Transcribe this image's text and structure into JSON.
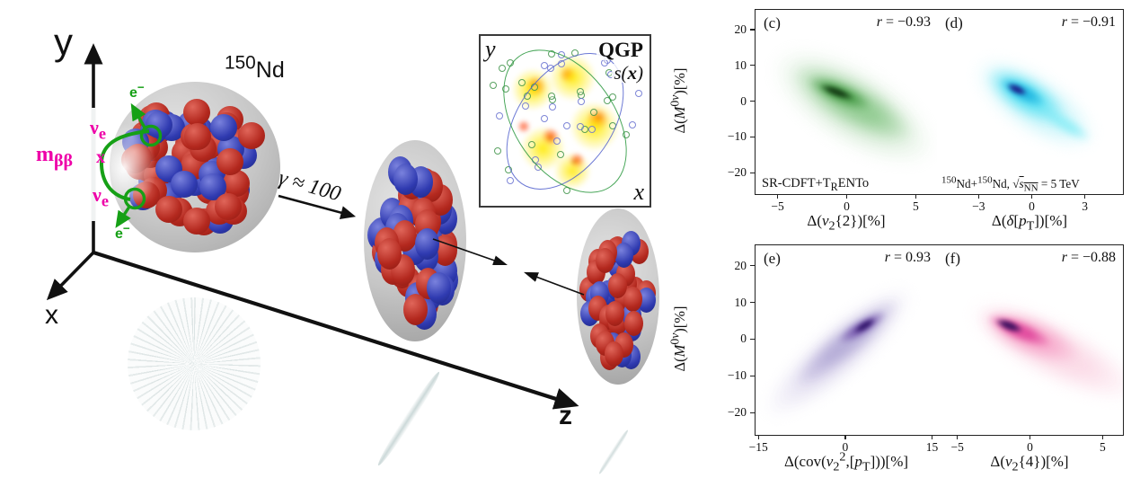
{
  "diagram": {
    "axes": {
      "x": "x",
      "y": "y",
      "z": "z"
    },
    "nucleus_label_html": "<sup>150</sup>Nd",
    "boost_label": "γ ≈ 100",
    "electron_html": "e<sup>−</sup>",
    "neutrino_html": "ν<sub>e</sub>",
    "mbb_html": "m<sub>ββ</sub>",
    "mass_cross": "x",
    "inset": {
      "title": "QGP",
      "entropy_html": "s(<b>x</b>)",
      "xaxis": "x",
      "yaxis": "y"
    },
    "colors": {
      "nucleon_red": "#b3281e",
      "nucleon_blue": "#2f3ab0",
      "decay_green": "#16a016",
      "magenta": "#ee00a8",
      "envelope_gray": "#c6c6c6"
    }
  },
  "chart_data": {
    "type": "density-correlation-grid",
    "grid": "2x2",
    "ylabel_html": "Δ(<i>M</i><sup>0<i>ν</i></sup>)[%]",
    "ylim": [
      -26,
      25.5
    ],
    "yticks": [
      20,
      10,
      0,
      -10,
      -20
    ],
    "panels": [
      {
        "tag": "(c)",
        "r_label_html": "<i>r</i> = −0.93",
        "r_value": -0.93,
        "xlabel_html": "Δ(<i>v</i><sub>2</sub>{2})[%]",
        "xlim": [
          -6.6,
          6.6
        ],
        "xticks": [
          -5,
          0,
          5
        ],
        "note_html": "SR-CDFT+T<sub>R</sub>ENTo",
        "show_yticks": true,
        "cloud": {
          "trend": "negative",
          "colormap": "greens",
          "blobs": [
            {
              "x1": -4.8,
              "y1": 11,
              "x2": 5.8,
              "y2": -14,
              "th": 62,
              "color": "#cfe8cf",
              "blur": 8,
              "op": 0.95
            },
            {
              "x1": -3.6,
              "y1": 8,
              "x2": 4.4,
              "y2": -9.5,
              "th": 36,
              "color": "#8cc98c",
              "blur": 6,
              "op": 0.9
            },
            {
              "x1": -2.6,
              "y1": 5.5,
              "x2": 1.6,
              "y2": -1.5,
              "th": 17,
              "color": "#3d943d",
              "blur": 4,
              "op": 0.9
            },
            {
              "x1": -1.9,
              "y1": 4.2,
              "x2": 0.4,
              "y2": 0.8,
              "th": 8,
              "color": "#143a14",
              "blur": 2,
              "op": 0.95
            }
          ]
        }
      },
      {
        "tag": "(d)",
        "r_label_html": "<i>r</i> = −0.91",
        "r_value": -0.91,
        "xlabel_html": "Δ(<i>δ</i>[<i>p</i><sub>T</sub>])[%]",
        "xlim": [
          -5.35,
          5.15
        ],
        "xticks": [
          -3,
          0,
          3
        ],
        "note_html": "<sup>150</sup>Nd+<sup>150</sup>Nd, √<span class=\"ov\"><i>s</i><sub>NN</sub></span> = 5 TeV",
        "show_yticks": false,
        "cloud": {
          "trend": "negative",
          "colormap": "cyan-navy",
          "blobs": [
            {
              "x1": -2.9,
              "y1": 9.5,
              "x2": 3.3,
              "y2": -11,
              "th": 48,
              "color": "#bff3f9",
              "blur": 7,
              "op": 0.95
            },
            {
              "x1": 0.6,
              "y1": -2.5,
              "x2": 3.2,
              "y2": -10.5,
              "th": 13,
              "color": "#8deef7",
              "blur": 4,
              "op": 0.9
            },
            {
              "x1": -2.3,
              "y1": 7.5,
              "x2": 1.7,
              "y2": -4.5,
              "th": 30,
              "color": "#55e0f2",
              "blur": 5,
              "op": 0.9
            },
            {
              "x1": -1.7,
              "y1": 5.8,
              "x2": 0.7,
              "y2": -0.5,
              "th": 15,
              "color": "#1fb4e0",
              "blur": 3,
              "op": 0.9
            },
            {
              "x1": -1.4,
              "y1": 4.6,
              "x2": -0.3,
              "y2": 2.0,
              "th": 8,
              "color": "#1d1d8a",
              "blur": 2,
              "op": 0.95
            }
          ]
        }
      },
      {
        "tag": "(e)",
        "r_label_html": "<i>r</i> = 0.93",
        "r_value": 0.93,
        "xlabel_html": "Δ(cov(<i>v</i><sub>2</sub><sup>2</sup>,[<i>p</i><sub>T</sub>]))[%]",
        "xlim": [
          -15.5,
          16
        ],
        "xticks": [
          -15,
          0,
          15
        ],
        "note_html": "",
        "show_yticks": true,
        "cloud": {
          "trend": "positive",
          "colormap": "purples",
          "blobs": [
            {
              "x1": -12.8,
              "y1": -19.5,
              "x2": 10.5,
              "y2": 12.5,
              "th": 42,
              "color": "#ded9ee",
              "blur": 7,
              "op": 0.95
            },
            {
              "x1": -8,
              "y1": -11.5,
              "x2": 8.6,
              "y2": 10,
              "th": 25,
              "color": "#b3aad6",
              "blur": 5,
              "op": 0.9
            },
            {
              "x1": -1,
              "y1": -0.5,
              "x2": 6.6,
              "y2": 7,
              "th": 13,
              "color": "#7657ae",
              "blur": 3,
              "op": 0.9
            },
            {
              "x1": 1.6,
              "y1": 1.8,
              "x2": 5.2,
              "y2": 5.4,
              "th": 7,
              "color": "#2f1268",
              "blur": 2,
              "op": 0.95
            }
          ]
        }
      },
      {
        "tag": "(f)",
        "r_label_html": "<i>r</i> = −0.88",
        "r_value": -0.88,
        "xlabel_html": "Δ(<i>v</i><sub>2</sub>{4})[%]",
        "xlim": [
          -6.4,
          6.4
        ],
        "xticks": [
          -5,
          0,
          5
        ],
        "note_html": "",
        "show_yticks": false,
        "cloud": {
          "trend": "negative",
          "colormap": "pink-purple",
          "blobs": [
            {
              "x1": -3.7,
              "y1": 7.8,
              "x2": 7.0,
              "y2": -14,
              "th": 48,
              "color": "#fbd9e6",
              "blur": 7,
              "op": 0.95
            },
            {
              "x1": -3.1,
              "y1": 6.2,
              "x2": 3.2,
              "y2": -4.5,
              "th": 32,
              "color": "#f6a3c8",
              "blur": 5,
              "op": 0.9
            },
            {
              "x1": -2.7,
              "y1": 5.6,
              "x2": 1.3,
              "y2": -1.2,
              "th": 17,
              "color": "#e0459b",
              "blur": 3,
              "op": 0.9
            },
            {
              "x1": -2.3,
              "y1": 5.0,
              "x2": -0.5,
              "y2": 2.2,
              "th": 9,
              "color": "#3a115f",
              "blur": 2,
              "op": 0.95
            }
          ]
        }
      }
    ]
  }
}
